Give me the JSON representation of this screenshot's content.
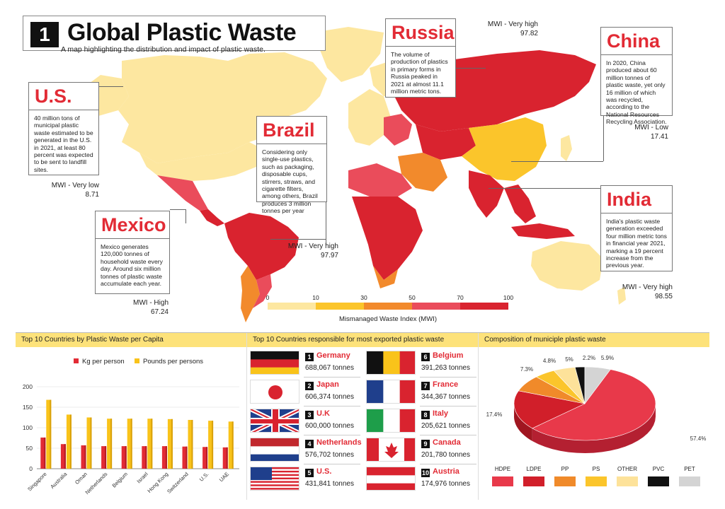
{
  "header": {
    "number": "1",
    "title": "Global Plastic Waste",
    "subtitle": "A map highlighting the distribution and impact of plastic waste."
  },
  "callouts": {
    "russia": {
      "name": "Russia",
      "text": "The volume of production of plastics in primary forms in Russia peaked in 2021 at almost 11.1 million metric tons.",
      "mwi_label": "MWI - Very high",
      "mwi_value": "97.82"
    },
    "china": {
      "name": "China",
      "text": "In 2020, China produced about 60 million tonnes of plastic waste, yet only 16 million of which was recycled, according to the National Resources Recycling Association.",
      "mwi_label": "MWI - Low",
      "mwi_value": "17.41"
    },
    "us": {
      "name": "U.S.",
      "text": "40 million tons of municipal plastic waste estimated to be generated in the U.S. in 2021, at least 80 percent was expected to be sent to landfill sites.",
      "mwi_label": "MWI - Very low",
      "mwi_value": "8.71"
    },
    "brazil": {
      "name": "Brazil",
      "text": "Considering only single-use plastics, such as packaging, disposable cups, stirrers, straws, and cigarette filters, among others, Brazil produces 3 million tonnes per year",
      "mwi_label": "MWI - Very high",
      "mwi_value": "97.97"
    },
    "mexico": {
      "name": "Mexico",
      "text": "Mexico generates 120,000 tonnes of household waste every day. Around six million tonnes of plastic waste accumulate each year.",
      "mwi_label": "MWI - High",
      "mwi_value": "67.24"
    },
    "india": {
      "name": "India",
      "text": "India's plastic waste generation exceeded four million metric tons in financial year 2021, marking a 19 percent increase from the previous year.",
      "mwi_label": "MWI - Very high",
      "mwi_value": "98.55"
    }
  },
  "scale": {
    "ticks": [
      "0",
      "10",
      "30",
      "50",
      "70",
      "100"
    ],
    "tick_values": [
      0,
      10,
      30,
      50,
      70,
      100
    ],
    "colors": [
      "#fde7a0",
      "#fbc52b",
      "#f28a2c",
      "#ea4c5b",
      "#d9232f"
    ],
    "title": "Mismanaged  Waste Index (MWI)"
  },
  "panel_per_capita": {
    "heading": "Top 10 Countries by Plastic Waste per Capita",
    "legend": [
      "Kg per person",
      "Pounds per persons"
    ]
  },
  "panel_exported": {
    "heading": "Top 10 Countries responsible for most exported plastic waste",
    "items": [
      {
        "rank": "1",
        "country": "Germany",
        "tonnes": "688,067 tonnes"
      },
      {
        "rank": "2",
        "country": "Japan",
        "tonnes": "606,374 tonnes"
      },
      {
        "rank": "3",
        "country": "U.K",
        "tonnes": "600,000 tonnes"
      },
      {
        "rank": "4",
        "country": "Netherlands",
        "tonnes": "576,702 tonnes"
      },
      {
        "rank": "5",
        "country": "U.S.",
        "tonnes": "431,841 tonnes"
      },
      {
        "rank": "6",
        "country": "Belgium",
        "tonnes": "391,263 tonnes"
      },
      {
        "rank": "7",
        "country": "France",
        "tonnes": "344,367 tonnes"
      },
      {
        "rank": "8",
        "country": "Italy",
        "tonnes": "205,621 tonnes"
      },
      {
        "rank": "9",
        "country": "Canada",
        "tonnes": "201,780 tonnes"
      },
      {
        "rank": "10",
        "country": "Austria",
        "tonnes": "174,976 tonnes"
      }
    ]
  },
  "panel_composition": {
    "heading": "Composition of municiple plastic waste"
  },
  "chart_data": [
    {
      "type": "bar",
      "categories": [
        "Singapore",
        "Australia",
        "Oman",
        "Netherlands",
        "Belgium",
        "Israel",
        "Hong Kong",
        "Switzerland",
        "U.S.",
        "UAE"
      ],
      "series": [
        {
          "name": "Kg per person",
          "values": [
            76,
            60,
            57,
            55,
            55,
            55,
            55,
            54,
            53,
            52
          ],
          "color": "#e22b35"
        },
        {
          "name": "Pounds per persons",
          "values": [
            168,
            132,
            125,
            122,
            122,
            122,
            121,
            119,
            117,
            115
          ],
          "color": "#f9c31a"
        }
      ],
      "yticks": [
        "0",
        "50",
        "100",
        "150",
        "200"
      ],
      "ylim": [
        0,
        200
      ],
      "legend": "top"
    },
    {
      "type": "pie",
      "labels": [
        "HDPE",
        "LDPE",
        "PP",
        "PS",
        "OTHER",
        "PVC",
        "PET"
      ],
      "values": [
        57.4,
        17.4,
        7.3,
        4.8,
        5,
        2.2,
        5.9
      ],
      "value_labels": [
        "57.4%",
        "17.4%",
        "7.3%",
        "4.8%",
        "5%",
        "2.2%",
        "5.9%"
      ],
      "colors": [
        "#e8394a",
        "#d11f2a",
        "#f08a2a",
        "#fbc52b",
        "#fde29a",
        "#111111",
        "#d4d4d4"
      ],
      "legend": "bottom"
    }
  ]
}
